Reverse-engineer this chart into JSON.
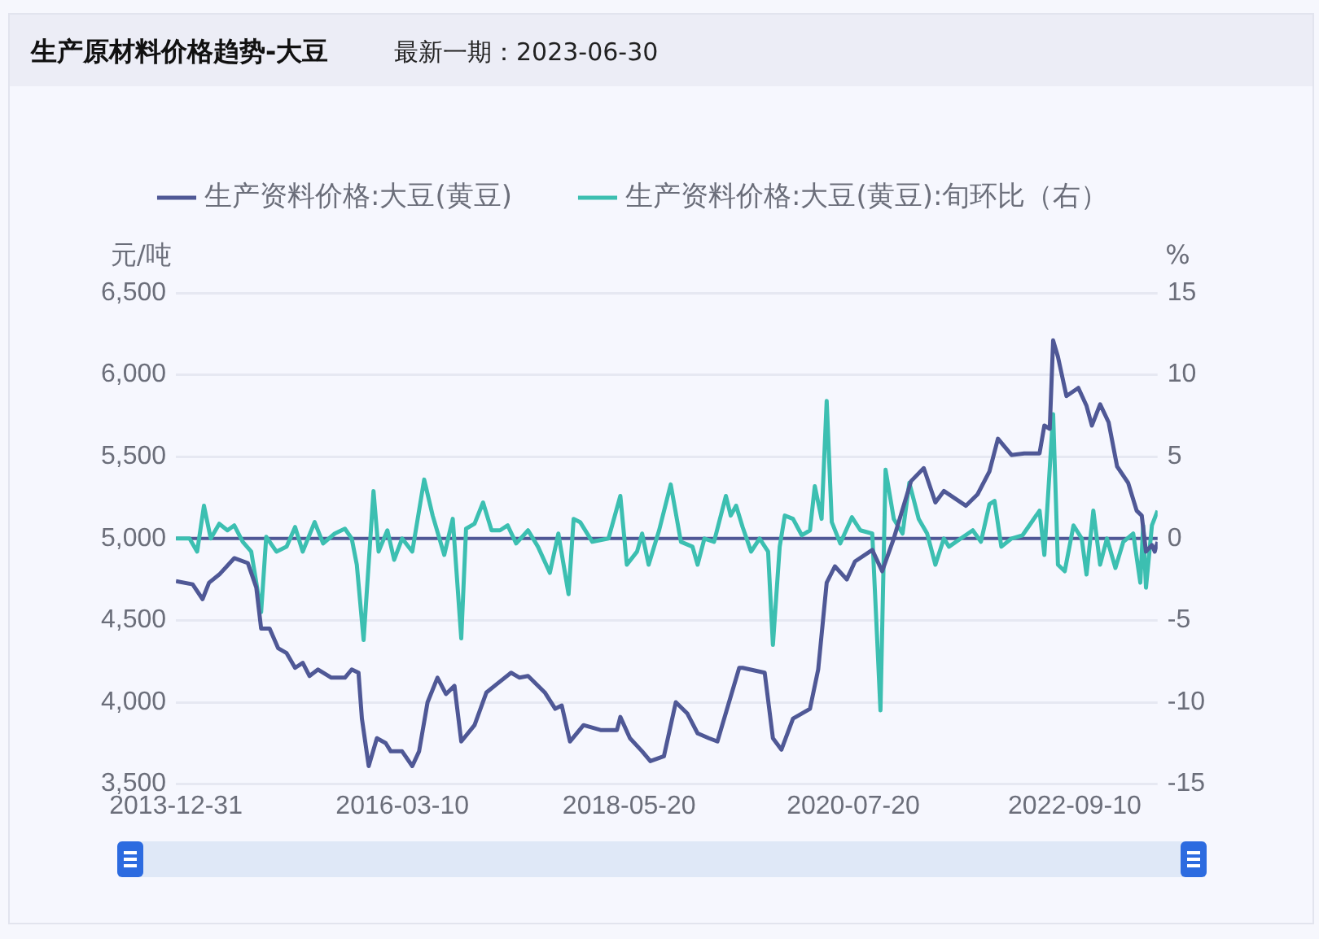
{
  "chart_data": {
    "type": "line",
    "title": "生产原材料价格趋势-大豆",
    "subtitle": "最新一期：2023-06-30",
    "ylabel": "元/吨",
    "y2label": "%",
    "xlim": [
      "2013-12-31",
      "2023-06-30"
    ],
    "xticks": [
      "2013-12-31",
      "2016-03-10",
      "2018-05-20",
      "2020-07-20",
      "2022-09-10"
    ],
    "ylim": [
      3500,
      6500
    ],
    "yticks": [
      {
        "value": 3500,
        "label": "3,500"
      },
      {
        "value": 4000,
        "label": "4,000"
      },
      {
        "value": 4500,
        "label": "4,500"
      },
      {
        "value": 5000,
        "label": "5,000"
      },
      {
        "value": 5500,
        "label": "5,500"
      },
      {
        "value": 6000,
        "label": "6,000"
      },
      {
        "value": 6500,
        "label": "6,500"
      }
    ],
    "y2lim": [
      -15,
      15
    ],
    "y2ticks": [
      -15,
      -10,
      -5,
      0,
      5,
      10,
      15
    ],
    "grid": "y",
    "legend": "top",
    "marker": "none",
    "ref_lines": [
      {
        "axis": "y2",
        "value": 0,
        "color": "#4f5896"
      }
    ],
    "series": [
      {
        "name": "生产资料价格:大豆(黄豆)",
        "color": "#4f5896",
        "x": [
          "2013-12-31",
          "2014-02-28",
          "2014-04-04",
          "2014-04-27",
          "2014-06-02",
          "2014-07-25",
          "2014-09-11",
          "2014-10-11",
          "2014-10-28",
          "2014-11-27",
          "2014-12-27",
          "2015-01-26",
          "2015-02-25",
          "2015-03-24",
          "2015-04-17",
          "2015-05-17",
          "2015-07-03",
          "2015-08-20",
          "2015-09-13",
          "2015-10-07",
          "2015-10-19",
          "2015-11-12",
          "2015-12-11",
          "2016-01-11",
          "2016-01-29",
          "2016-03-09",
          "2016-04-14",
          "2016-05-08",
          "2016-06-07",
          "2016-07-12",
          "2016-08-11",
          "2016-09-10",
          "2016-10-04",
          "2016-11-20",
          "2017-01-01",
          "2017-02-06",
          "2017-03-29",
          "2017-04-28",
          "2017-05-28",
          "2017-07-26",
          "2017-09-01",
          "2017-09-24",
          "2017-10-23",
          "2017-12-10",
          "2018-02-08",
          "2018-04-07",
          "2018-04-19",
          "2018-05-23",
          "2018-07-05",
          "2018-08-03",
          "2018-09-20",
          "2018-11-01",
          "2018-12-12",
          "2019-01-17",
          "2019-02-26",
          "2019-03-28",
          "2019-05-08",
          "2019-06-13",
          "2019-06-25",
          "2019-09-11",
          "2019-10-10",
          "2019-11-09",
          "2019-12-20",
          "2020-02-18",
          "2020-03-18",
          "2020-04-17",
          "2020-05-16",
          "2020-06-27",
          "2020-07-26",
          "2020-09-25",
          "2020-10-30",
          "2020-12-10",
          "2021-02-09",
          "2021-03-26",
          "2021-05-06",
          "2021-06-05",
          "2021-08-22",
          "2021-10-02",
          "2021-11-13",
          "2021-12-13",
          "2022-01-30",
          "2022-03-16",
          "2022-05-09",
          "2022-05-26",
          "2022-06-14",
          "2022-06-26",
          "2022-07-13",
          "2022-08-12",
          "2022-09-23",
          "2022-10-22",
          "2022-11-10",
          "2022-12-09",
          "2023-01-08",
          "2023-02-07",
          "2023-03-18",
          "2023-04-17",
          "2023-05-05",
          "2023-05-20",
          "2023-06-10",
          "2023-06-20",
          "2023-06-30"
        ],
        "values": [
          4740,
          4720,
          4630,
          4730,
          4780,
          4880,
          4850,
          4700,
          4450,
          4450,
          4330,
          4300,
          4210,
          4240,
          4160,
          4200,
          4150,
          4150,
          4200,
          4180,
          3900,
          3610,
          3780,
          3750,
          3700,
          3700,
          3610,
          3700,
          4000,
          4150,
          4050,
          4100,
          3760,
          3860,
          4060,
          4110,
          4180,
          4150,
          4160,
          4060,
          3960,
          3980,
          3760,
          3860,
          3830,
          3830,
          3910,
          3780,
          3700,
          3640,
          3670,
          4000,
          3930,
          3810,
          3780,
          3760,
          4000,
          4210,
          4210,
          4180,
          3780,
          3710,
          3900,
          3960,
          4200,
          4730,
          4830,
          4750,
          4860,
          4930,
          4800,
          5000,
          5350,
          5430,
          5220,
          5290,
          5200,
          5270,
          5410,
          5610,
          5510,
          5520,
          5520,
          5690,
          5670,
          6210,
          6110,
          5870,
          5920,
          5810,
          5690,
          5820,
          5710,
          5440,
          5340,
          5170,
          5140,
          4920,
          4960,
          4920,
          4980
        ]
      },
      {
        "name": "生产资料价格:大豆(黄豆):旬环比（右）",
        "color": "#3cbfb1",
        "axis": "y2",
        "x": [
          "2013-12-31",
          "2014-02-17",
          "2014-03-16",
          "2014-04-09",
          "2014-05-03",
          "2014-06-02",
          "2014-07-01",
          "2014-07-25",
          "2014-08-24",
          "2014-09-23",
          "2014-10-28",
          "2014-11-15",
          "2014-12-21",
          "2015-01-26",
          "2015-02-25",
          "2015-03-24",
          "2015-05-05",
          "2015-06-04",
          "2015-07-15",
          "2015-08-20",
          "2015-09-13",
          "2015-10-01",
          "2015-10-25",
          "2015-11-29",
          "2015-12-17",
          "2016-01-17",
          "2016-02-10",
          "2016-03-09",
          "2016-04-14",
          "2016-05-26",
          "2016-06-25",
          "2016-08-05",
          "2016-09-04",
          "2016-10-04",
          "2016-10-21",
          "2016-11-20",
          "2016-12-20",
          "2017-01-19",
          "2017-02-18",
          "2017-03-17",
          "2017-04-16",
          "2017-05-28",
          "2017-07-02",
          "2017-08-13",
          "2017-09-12",
          "2017-10-18",
          "2017-11-05",
          "2017-11-28",
          "2018-01-10",
          "2018-03-08",
          "2018-04-19",
          "2018-05-12",
          "2018-06-17",
          "2018-07-05",
          "2018-07-28",
          "2018-09-03",
          "2018-10-14",
          "2018-11-19",
          "2018-12-30",
          "2019-01-17",
          "2019-02-10",
          "2019-03-16",
          "2019-04-27",
          "2019-05-14",
          "2019-06-02",
          "2019-06-25",
          "2019-07-25",
          "2019-08-24",
          "2019-09-23",
          "2019-10-10",
          "2019-11-03",
          "2019-11-21",
          "2019-12-20",
          "2020-01-20",
          "2020-02-18",
          "2020-03-06",
          "2020-03-30",
          "2020-04-17",
          "2020-05-05",
          "2020-06-04",
          "2020-07-15",
          "2020-08-14",
          "2020-09-25",
          "2020-10-24",
          "2020-11-11",
          "2020-12-10",
          "2021-01-10",
          "2021-02-03",
          "2021-03-08",
          "2021-04-07",
          "2021-05-06",
          "2021-06-05",
          "2021-06-23",
          "2021-08-04",
          "2021-09-15",
          "2021-10-14",
          "2021-11-13",
          "2021-12-01",
          "2021-12-25",
          "2022-01-30",
          "2022-03-10",
          "2022-05-09",
          "2022-05-26",
          "2022-06-26",
          "2022-07-13",
          "2022-08-06",
          "2022-09-06",
          "2022-10-05",
          "2022-10-22",
          "2022-11-15",
          "2022-12-09",
          "2023-01-02",
          "2023-02-01",
          "2023-03-01",
          "2023-04-05",
          "2023-04-30",
          "2023-05-10",
          "2023-05-20",
          "2023-06-10",
          "2023-06-30"
        ],
        "values": [
          0,
          0,
          -0.8,
          2.0,
          0,
          0.9,
          0.5,
          0.8,
          -0.2,
          -0.8,
          -4.5,
          0.1,
          -0.8,
          -0.5,
          0.7,
          -0.8,
          1.0,
          -0.3,
          0.3,
          0.6,
          0,
          -1.6,
          -6.2,
          2.9,
          -0.8,
          0.5,
          -1.3,
          0,
          -0.8,
          3.6,
          1.4,
          -1.0,
          1.2,
          -6.1,
          0.6,
          0.9,
          2.2,
          0.5,
          0.5,
          0.8,
          -0.3,
          0.5,
          -0.5,
          -2.1,
          0.3,
          -3.4,
          1.2,
          1.0,
          -0.2,
          0,
          2.6,
          -1.6,
          -0.8,
          0.3,
          -1.6,
          0.5,
          3.3,
          -0.2,
          -0.5,
          -1.6,
          0,
          -0.2,
          2.6,
          1.4,
          2.0,
          0.7,
          -0.8,
          0,
          -0.8,
          -6.5,
          -0.5,
          1.4,
          1.2,
          0.2,
          0.5,
          3.2,
          1.2,
          8.4,
          1.0,
          -0.3,
          1.3,
          0.5,
          0.3,
          -10.5,
          4.2,
          1.2,
          0.3,
          3.4,
          1.2,
          0.3,
          -1.6,
          0,
          -0.5,
          0,
          0.5,
          -0.2,
          2.1,
          2.3,
          -0.5,
          0,
          0.2,
          1.7,
          -1.0,
          7.6,
          -1.6,
          -2.0,
          0.8,
          0,
          -2.2,
          1.7,
          -1.6,
          0,
          -1.8,
          -0.2,
          0.3,
          -2.7,
          0.8,
          -3.0,
          0.8,
          1.7
        ]
      }
    ]
  }
}
